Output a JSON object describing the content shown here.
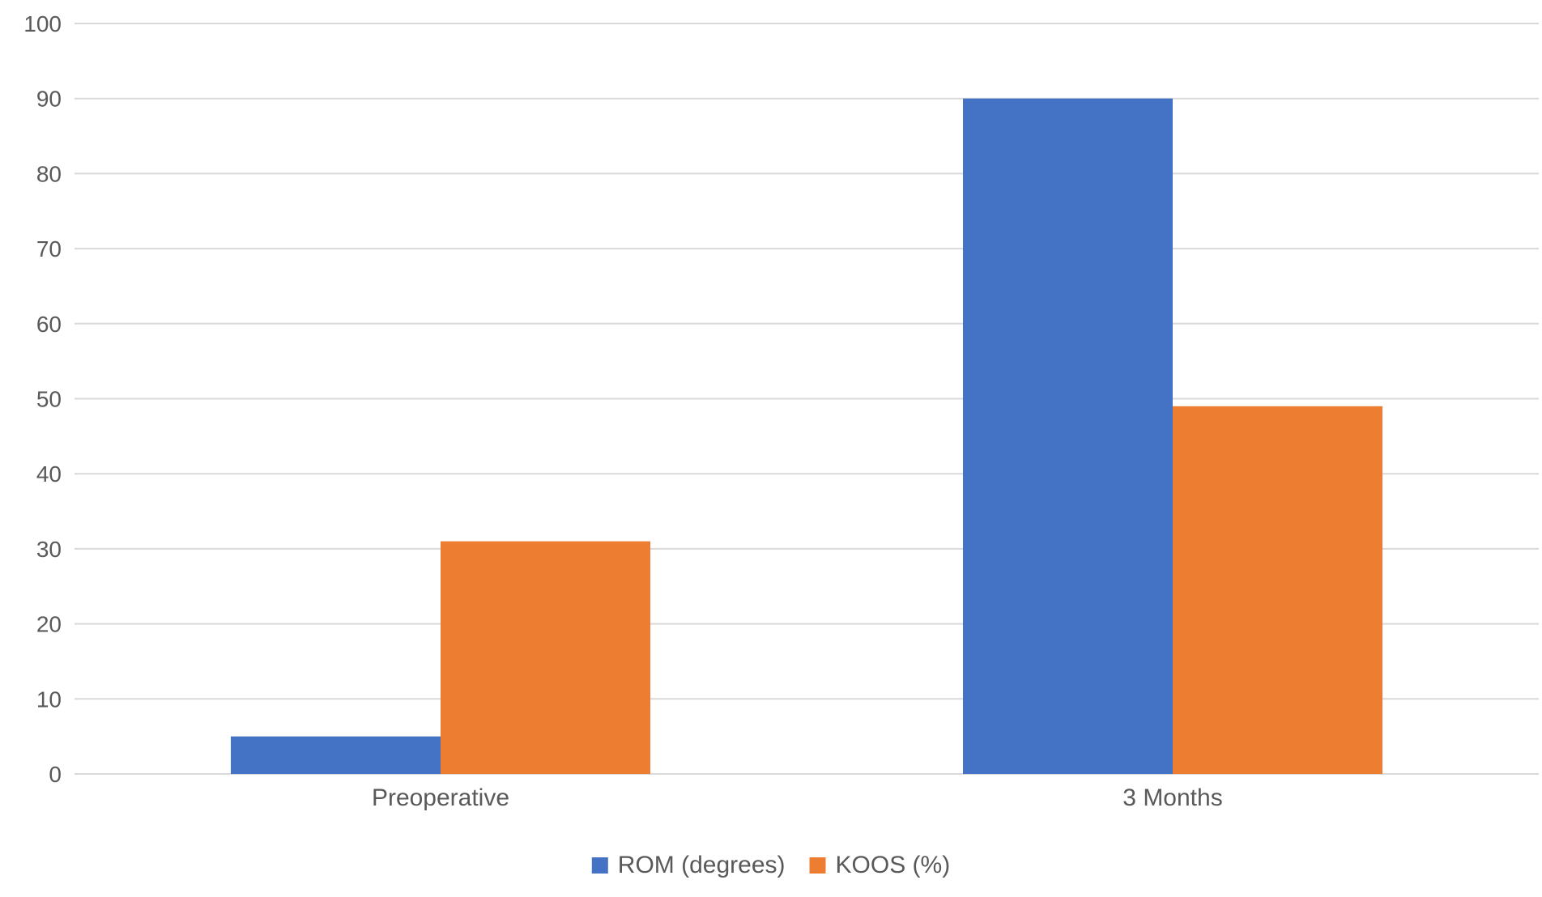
{
  "chart_data": {
    "type": "bar",
    "title": "",
    "xlabel": "",
    "ylabel": "",
    "categories": [
      "Preoperative",
      "3 Months"
    ],
    "series": [
      {
        "name": "ROM (degrees)",
        "values": [
          5,
          90
        ],
        "color": "#4472C4"
      },
      {
        "name": "KOOS (%)",
        "values": [
          31,
          49
        ],
        "color": "#ED7D31"
      }
    ],
    "ylim": [
      0,
      100
    ],
    "yticks": [
      "0",
      "10",
      "20",
      "30",
      "40",
      "50",
      "60",
      "70",
      "80",
      "90",
      "100"
    ],
    "grid": true,
    "gridline_color": "#D9D9D9",
    "legend_position": "bottom-center"
  }
}
